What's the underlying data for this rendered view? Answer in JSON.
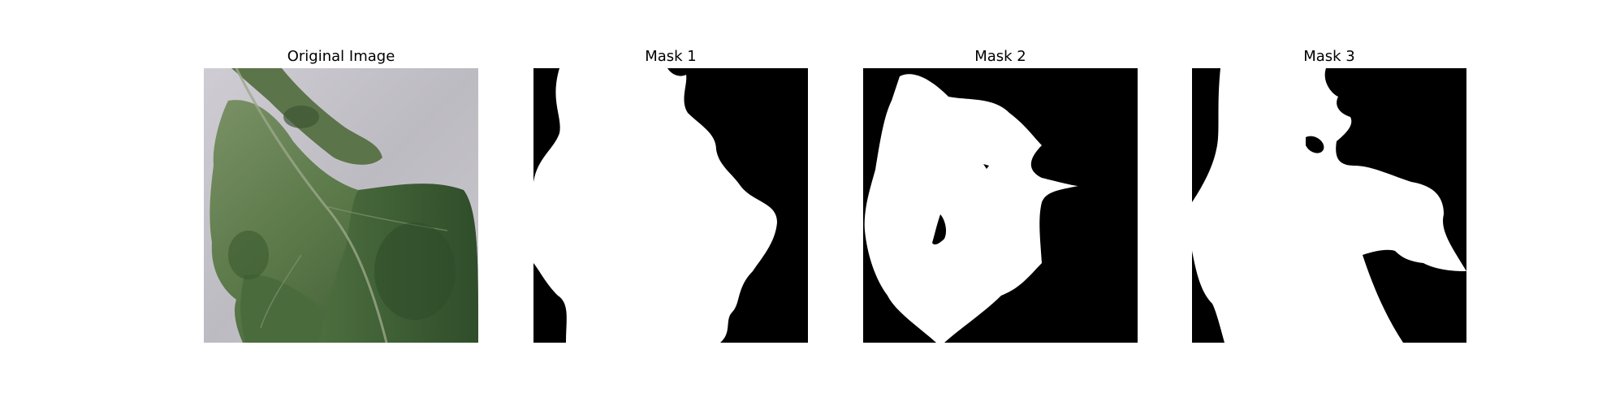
{
  "panels": [
    {
      "title": "Original Image"
    },
    {
      "title": "Mask 1"
    },
    {
      "title": "Mask 2"
    },
    {
      "title": "Mask 3"
    }
  ],
  "colors": {
    "background": "#ffffff",
    "mask_background": "#000000",
    "mask_foreground": "#ffffff",
    "leaf_dark": "#3e5c35",
    "leaf_mid": "#5a7a4a",
    "leaf_light": "#7a9768",
    "paper": "#c8c6cc"
  }
}
